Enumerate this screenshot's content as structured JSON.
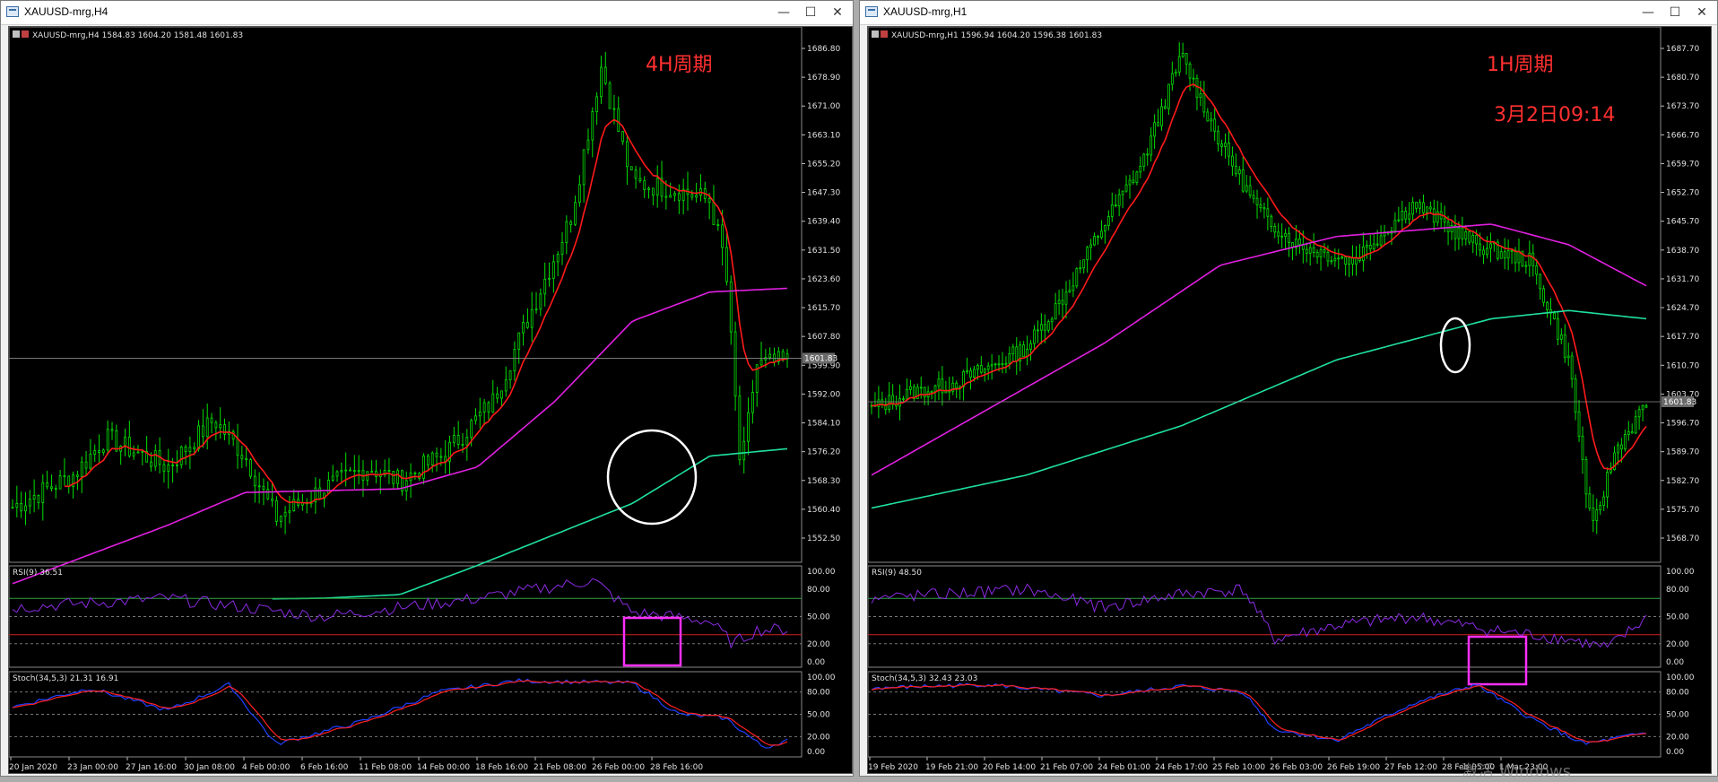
{
  "windows": [
    {
      "title": "XAUUSD-mrg,H4",
      "buttons": {
        "minimize": "—",
        "maximize": "☐",
        "close": "✕"
      },
      "header": "XAUUSD-mrg,H4  1584.83 1604.20 1581.48 1601.83",
      "annotation": "4H周期",
      "annotation2": "",
      "price_ticks": [
        "1686.80",
        "1678.90",
        "1671.00",
        "1663.10",
        "1655.20",
        "1647.30",
        "1639.40",
        "1631.50",
        "1623.60",
        "1615.70",
        "1607.80",
        "1599.90",
        "1592.00",
        "1584.10",
        "1576.20",
        "1568.30",
        "1560.40",
        "1552.50"
      ],
      "current_price": "1601.83",
      "rsi_label": "RSI(9) 36.51",
      "rsi_ticks": [
        "100.00",
        "80.00",
        "50.00",
        "20.00",
        "0.00"
      ],
      "stoch_label": "Stoch(34,5,3) 21.31 16.91",
      "stoch_ticks": [
        "100.00",
        "80.00",
        "50.00",
        "20.00",
        "0.00"
      ],
      "time_ticks": [
        "20 Jan 2020",
        "23 Jan 00:00",
        "27 Jan 16:00",
        "30 Jan 08:00",
        "4 Feb 00:00",
        "6 Feb 16:00",
        "11 Feb 08:00",
        "14 Feb 00:00",
        "18 Feb 16:00",
        "21 Feb 08:00",
        "26 Feb 00:00",
        "28 Feb 16:00"
      ]
    },
    {
      "title": "XAUUSD-mrg,H1",
      "buttons": {
        "minimize": "—",
        "maximize": "☐",
        "close": "✕"
      },
      "header": "XAUUSD-mrg,H1  1596.94 1604.20 1596.38 1601.83",
      "annotation": "1H周期",
      "annotation2": "3月2日09:14",
      "price_ticks": [
        "1687.70",
        "1680.70",
        "1673.70",
        "1666.70",
        "1659.70",
        "1652.70",
        "1645.70",
        "1638.70",
        "1631.70",
        "1624.70",
        "1617.70",
        "1610.70",
        "1603.70",
        "1596.70",
        "1589.70",
        "1582.70",
        "1575.70",
        "1568.70"
      ],
      "current_price": "1601.83",
      "rsi_label": "RSI(9) 48.50",
      "rsi_ticks": [
        "100.00",
        "80.00",
        "50.00",
        "20.00",
        "0.00"
      ],
      "stoch_label": "Stoch(34,5,3) 32.43 23.03",
      "stoch_ticks": [
        "100.00",
        "80.00",
        "50.00",
        "20.00",
        "0.00"
      ],
      "time_ticks": [
        "19 Feb 2020",
        "19 Feb 21:00",
        "20 Feb 14:00",
        "21 Feb 07:00",
        "24 Feb 01:00",
        "24 Feb 17:00",
        "25 Feb 10:00",
        "26 Feb 03:00",
        "26 Feb 19:00",
        "27 Feb 12:00",
        "28 Feb 05:00",
        "1 Mar 23:00"
      ]
    }
  ],
  "watermark": "激活 Windows",
  "colors": {
    "candle": "#00e000",
    "ma_red": "#ff1a1a",
    "ma_magenta": "#e020e0",
    "ma_teal": "#20e0a0",
    "rsi": "#8a2be2",
    "stoch_main": "#2040ff",
    "stoch_signal": "#ff2020",
    "annotation": "#ff3030",
    "highlight_box": "#ff30ff",
    "circle": "#ffffff"
  }
}
